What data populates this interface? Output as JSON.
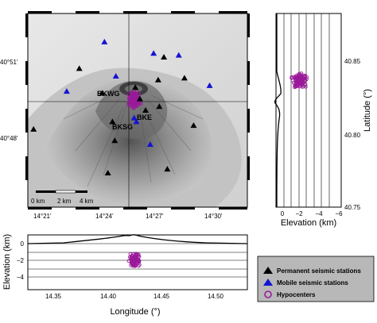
{
  "chart_data": [
    {
      "type": "scatter",
      "panel": "map",
      "x_ticks": [
        "14°21'",
        "14°24'",
        "14°27'",
        "14°30'"
      ],
      "x_tick_values": [
        14.35,
        14.4,
        14.45,
        14.5
      ],
      "y_ticks": [
        "40°51'",
        "40°48'"
      ],
      "y_tick_values": [
        40.85,
        40.8
      ],
      "xlim": [
        14.333,
        14.525
      ],
      "ylim": [
        40.765,
        40.867
      ],
      "scale_bar": [
        "0 km",
        "2 km",
        "4 km"
      ],
      "station_labels": [
        "BKWG",
        "BKE",
        "BKSG"
      ],
      "series": [
        {
          "name": "Permanent seismic stations",
          "marker": "triangle",
          "color": "#000000",
          "points": [
            [
              14.338,
              40.806
            ],
            [
              14.378,
              40.838
            ],
            [
              14.398,
              40.825
            ],
            [
              14.407,
              40.81
            ],
            [
              14.409,
              40.8
            ],
            [
              14.403,
              40.783
            ],
            [
              14.427,
              40.828
            ],
            [
              14.447,
              40.832
            ],
            [
              14.448,
              40.818
            ],
            [
              14.436,
              40.816
            ],
            [
              14.452,
              40.844
            ],
            [
              14.455,
              40.785
            ],
            [
              14.47,
              40.833
            ],
            [
              14.478,
              40.808
            ],
            [
              14.431,
              40.822
            ]
          ]
        },
        {
          "name": "Mobile seismic stations",
          "marker": "triangle",
          "color": "#1414d2",
          "points": [
            [
              14.4,
              40.852
            ],
            [
              14.443,
              40.846
            ],
            [
              14.465,
              40.845
            ],
            [
              14.367,
              40.826
            ],
            [
              14.492,
              40.829
            ],
            [
              14.41,
              40.834
            ],
            [
              14.428,
              40.81
            ],
            [
              14.426,
              40.812
            ],
            [
              14.44,
              40.798
            ]
          ]
        },
        {
          "name": "Hypocenters",
          "marker": "circle",
          "color": "#9a1a9a"
        }
      ]
    },
    {
      "type": "scatter",
      "panel": "latitude-elevation",
      "xlabel": "Elevation (km)",
      "ylabel": "Latitude (°)",
      "x_ticks": [
        "0",
        "−2",
        "−4",
        "−6"
      ],
      "x_tick_values": [
        0,
        -2,
        -4,
        -6
      ],
      "y_ticks": [
        "40.85",
        "40.80",
        "40.75"
      ],
      "y_tick_values": [
        40.85,
        40.8,
        40.75
      ],
      "xlim": [
        0,
        -6
      ],
      "ylim": [
        40.735,
        40.867
      ]
    },
    {
      "type": "scatter",
      "panel": "longitude-elevation",
      "xlabel": "Longitude (°)",
      "ylabel": "Elevation (km)",
      "x_ticks": [
        "14.35",
        "14.40",
        "14.45",
        "14.50"
      ],
      "x_tick_values": [
        14.35,
        14.4,
        14.45,
        14.5
      ],
      "y_ticks": [
        "0",
        "−2",
        "−4"
      ],
      "y_tick_values": [
        0,
        -2,
        -4
      ],
      "xlim": [
        14.333,
        14.525
      ],
      "ylim": [
        -5.3,
        1.3
      ]
    }
  ],
  "legend": [
    {
      "label": "Permanent seismic stations",
      "marker": "triangle",
      "color": "#000000"
    },
    {
      "label": "Mobile seismic stations",
      "marker": "triangle",
      "color": "#1414d2"
    },
    {
      "label": "Hypocenters",
      "marker": "circle",
      "color": "#9a1a9a"
    }
  ],
  "colors": {
    "hypocenter": "#9a1a9a",
    "mobile": "#1414d2",
    "permanent": "#000000",
    "legend_bg": "#b8b8b8"
  }
}
